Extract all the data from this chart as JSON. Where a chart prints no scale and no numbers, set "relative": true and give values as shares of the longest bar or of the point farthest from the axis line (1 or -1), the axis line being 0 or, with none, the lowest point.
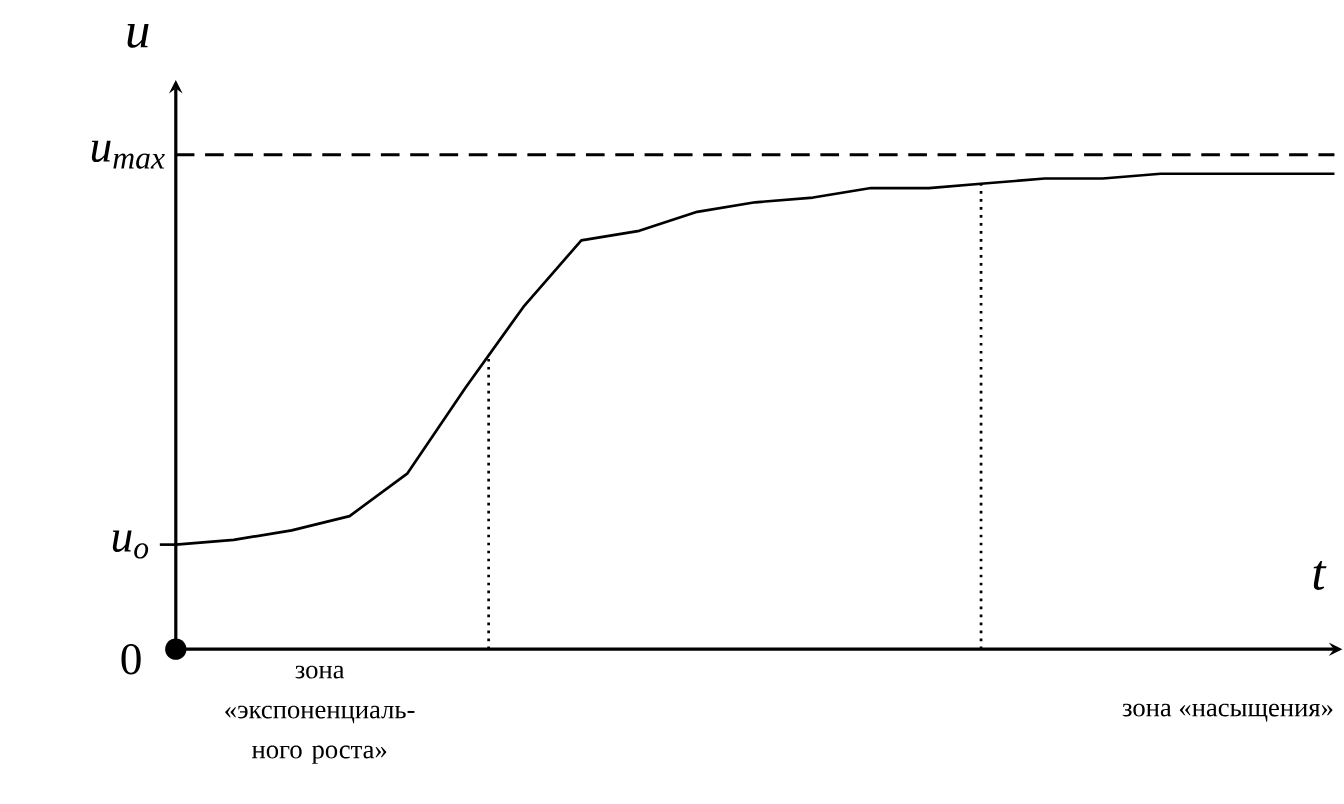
{
  "chart_data": {
    "type": "line",
    "relative": true,
    "xlabel": "t",
    "ylabel": "u",
    "color": "#000000",
    "line_style": "solid",
    "categories": [
      null,
      null,
      null,
      null,
      null,
      null,
      null,
      null,
      null,
      null,
      null,
      null,
      null,
      null,
      null,
      null,
      null,
      null,
      null,
      null,
      null
    ],
    "values": [
      0.22,
      0.23,
      0.25,
      0.28,
      0.37,
      0.55,
      0.72,
      0.86,
      0.88,
      0.92,
      0.94,
      0.95,
      0.97,
      0.97,
      0.98,
      0.99,
      0.99,
      1.0,
      1.0,
      1.0,
      1.0
    ],
    "ref_lines": [
      {
        "axis": "y",
        "value": 1.04,
        "label": "u$_{max}$",
        "line_style": "dashed"
      }
    ],
    "annotations": [
      "0",
      "зона «экспоненциаль-ного роста»",
      "зона «насыщения»",
      "u$_{o}$"
    ]
  }
}
